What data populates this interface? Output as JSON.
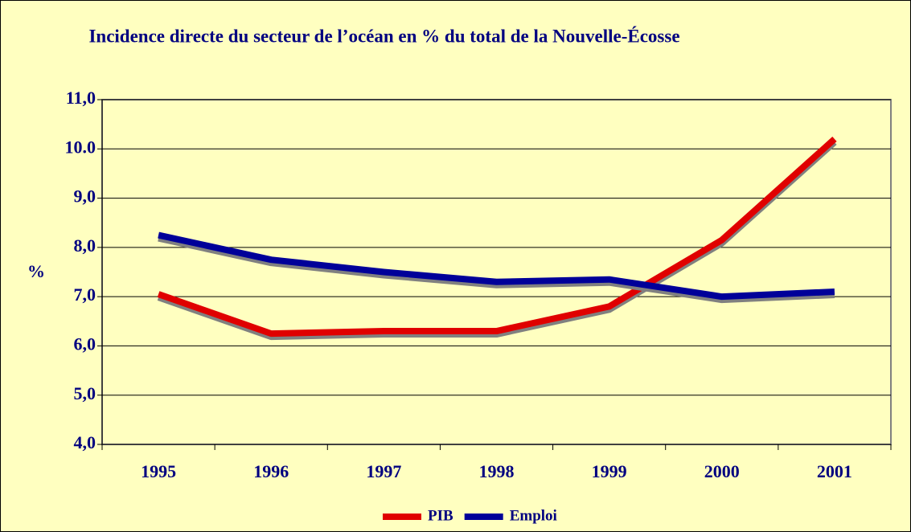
{
  "chart_data": {
    "type": "line",
    "title": "Incidence directe du secteur de l’océan en % du total de la Nouvelle-Écosse",
    "y_label": "%",
    "categories": [
      "1995",
      "1996",
      "1997",
      "1998",
      "1999",
      "2000",
      "2001"
    ],
    "series": [
      {
        "name": "PIB",
        "color": "#e00000",
        "values": [
          7.05,
          6.25,
          6.3,
          6.3,
          6.8,
          8.15,
          10.2
        ]
      },
      {
        "name": "Emploi",
        "color": "#000099",
        "values": [
          8.25,
          7.75,
          7.5,
          7.3,
          7.35,
          7.0,
          7.1
        ]
      }
    ],
    "ylim": [
      4,
      11
    ],
    "yticks": [
      {
        "value": 4,
        "label": "4,0"
      },
      {
        "value": 5,
        "label": "5,0"
      },
      {
        "value": 6,
        "label": "6,0"
      },
      {
        "value": 7,
        "label": "7,0"
      },
      {
        "value": 8,
        "label": "8,0"
      },
      {
        "value": 9,
        "label": "9,0"
      },
      {
        "value": 10,
        "label": "10.0"
      },
      {
        "value": 11,
        "label": "11,0"
      }
    ],
    "grid": true,
    "legend": "bottom"
  }
}
